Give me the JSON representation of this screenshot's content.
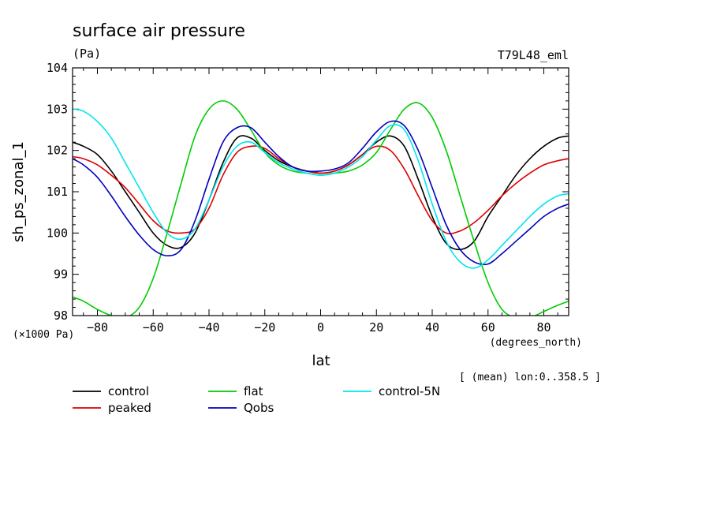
{
  "chart_data": {
    "type": "line",
    "title": "surface air pressure",
    "units": "(Pa)",
    "run_label": "T79L48_eml",
    "ylabel": "sh_ps_zonal_1",
    "xlabel": "lat",
    "x_units": "(degrees_north)",
    "y_multiplier": "(×1000 Pa)",
    "footnote": "[ (mean) lon:0..358.5 ]",
    "xlim": [
      -88.9,
      88.9
    ],
    "ylim": [
      98,
      104
    ],
    "x_ticks": [
      -80,
      -60,
      -40,
      -20,
      0,
      20,
      40,
      60,
      80
    ],
    "x_tick_labels": [
      "−80",
      "−60",
      "−40",
      "−20",
      "0",
      "20",
      "40",
      "60",
      "80"
    ],
    "y_ticks": [
      98,
      99,
      100,
      101,
      102,
      103,
      104
    ],
    "y_tick_labels": [
      "98",
      "99",
      "100",
      "101",
      "102",
      "103",
      "104"
    ],
    "series": [
      {
        "name": "control",
        "color": "#000000",
        "x": [
          -88.9,
          -85,
          -80,
          -75,
          -70,
          -65,
          -60,
          -55,
          -50,
          -45,
          -40,
          -35,
          -30,
          -25,
          -20,
          -15,
          -10,
          -5,
          0,
          5,
          10,
          15,
          20,
          25,
          30,
          35,
          40,
          45,
          50,
          55,
          60,
          65,
          70,
          75,
          80,
          85,
          88.9
        ],
        "y": [
          102.2,
          102.1,
          101.9,
          101.5,
          101.0,
          100.5,
          100.0,
          99.7,
          99.65,
          100.0,
          100.8,
          101.7,
          102.3,
          102.3,
          102.0,
          101.75,
          101.6,
          101.5,
          101.45,
          101.5,
          101.65,
          101.9,
          102.2,
          102.35,
          102.1,
          101.3,
          100.4,
          99.75,
          99.6,
          99.8,
          100.4,
          100.9,
          101.4,
          101.8,
          102.1,
          102.3,
          102.35
        ]
      },
      {
        "name": "peaked",
        "color": "#dd0000",
        "x": [
          -88.9,
          -85,
          -80,
          -75,
          -70,
          -65,
          -60,
          -55,
          -50,
          -45,
          -40,
          -35,
          -30,
          -25,
          -20,
          -15,
          -10,
          -5,
          0,
          5,
          10,
          15,
          20,
          25,
          30,
          35,
          40,
          45,
          50,
          55,
          60,
          65,
          70,
          75,
          80,
          85,
          88.9
        ],
        "y": [
          101.85,
          101.8,
          101.65,
          101.4,
          101.1,
          100.7,
          100.3,
          100.05,
          100.0,
          100.1,
          100.6,
          101.4,
          101.95,
          102.1,
          102.05,
          101.8,
          101.6,
          101.5,
          101.45,
          101.5,
          101.65,
          101.9,
          102.1,
          102.0,
          101.55,
          100.9,
          100.3,
          100.0,
          100.05,
          100.25,
          100.55,
          100.9,
          101.2,
          101.45,
          101.65,
          101.75,
          101.8
        ]
      },
      {
        "name": "flat",
        "color": "#00cc00",
        "x": [
          -88.9,
          -85,
          -80,
          -75,
          -70,
          -65,
          -60,
          -55,
          -50,
          -45,
          -40,
          -35,
          -30,
          -25,
          -20,
          -15,
          -10,
          -5,
          0,
          5,
          10,
          15,
          20,
          25,
          30,
          35,
          40,
          45,
          50,
          55,
          60,
          65,
          70,
          75,
          80,
          85,
          88.9
        ],
        "y": [
          98.45,
          98.35,
          98.15,
          98.0,
          97.95,
          98.2,
          98.9,
          100.0,
          101.2,
          102.35,
          103.0,
          103.2,
          103.0,
          102.5,
          101.95,
          101.65,
          101.5,
          101.45,
          101.4,
          101.45,
          101.5,
          101.65,
          101.95,
          102.5,
          103.0,
          103.15,
          102.8,
          102.0,
          100.9,
          99.8,
          98.8,
          98.15,
          97.95,
          97.95,
          98.1,
          98.25,
          98.35
        ]
      },
      {
        "name": "Qobs",
        "color": "#0000bb",
        "x": [
          -88.9,
          -85,
          -80,
          -75,
          -70,
          -65,
          -60,
          -55,
          -50,
          -45,
          -40,
          -35,
          -30,
          -25,
          -20,
          -15,
          -10,
          -5,
          0,
          5,
          10,
          15,
          20,
          25,
          30,
          35,
          40,
          45,
          50,
          55,
          60,
          65,
          70,
          75,
          80,
          85,
          88.9
        ],
        "y": [
          101.8,
          101.65,
          101.35,
          100.9,
          100.4,
          99.95,
          99.6,
          99.45,
          99.6,
          100.3,
          101.3,
          102.2,
          102.55,
          102.55,
          102.2,
          101.85,
          101.6,
          101.5,
          101.5,
          101.55,
          101.7,
          102.05,
          102.45,
          102.7,
          102.6,
          102.0,
          101.1,
          100.2,
          99.6,
          99.3,
          99.25,
          99.5,
          99.8,
          100.1,
          100.4,
          100.6,
          100.7
        ]
      },
      {
        "name": "control-5N",
        "color": "#00e5ee",
        "x": [
          -88.9,
          -85,
          -80,
          -75,
          -70,
          -65,
          -60,
          -55,
          -50,
          -45,
          -40,
          -35,
          -30,
          -25,
          -20,
          -15,
          -10,
          -5,
          0,
          5,
          10,
          15,
          20,
          25,
          30,
          35,
          40,
          45,
          50,
          55,
          60,
          65,
          70,
          75,
          80,
          85,
          88.9
        ],
        "y": [
          103.0,
          102.95,
          102.7,
          102.3,
          101.7,
          101.1,
          100.5,
          100.0,
          99.85,
          100.1,
          100.8,
          101.6,
          102.1,
          102.2,
          101.95,
          101.7,
          101.55,
          101.45,
          101.4,
          101.45,
          101.6,
          101.85,
          102.25,
          102.6,
          102.5,
          101.75,
          100.7,
          99.8,
          99.3,
          99.15,
          99.35,
          99.7,
          100.05,
          100.4,
          100.7,
          100.9,
          100.95
        ]
      }
    ],
    "legend_position": "bottom-left"
  }
}
